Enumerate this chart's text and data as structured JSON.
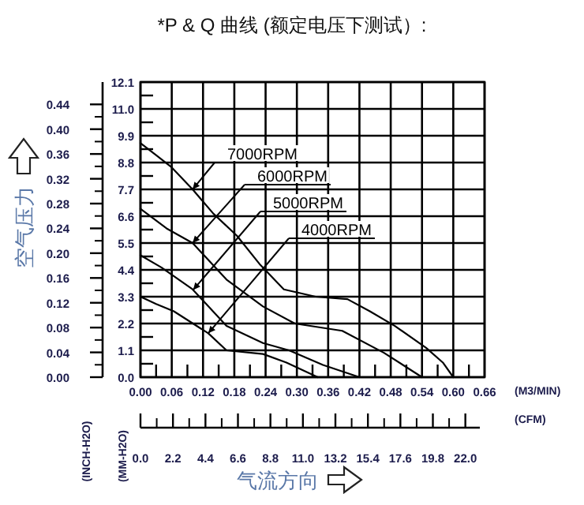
{
  "chart_data": {
    "type": "line",
    "title": "*P & Q 曲线 (额定电压下测试）:",
    "xlabel": "(M3/MIN)",
    "x2label": "(CFM)",
    "ylabel": "(MM-H2O)",
    "y2label": "(INCH-H2O)",
    "annotations": [
      "空气压力",
      "气流方向"
    ],
    "xlim": [
      0,
      0.66
    ],
    "ylim": [
      0,
      12.1
    ],
    "x2lim": [
      0,
      23.3
    ],
    "y2lim": [
      0,
      0.476
    ],
    "xticks": [
      {
        "value": 0,
        "label": "0.00"
      },
      {
        "value": 0.06,
        "label": "0.06"
      },
      {
        "value": 0.12,
        "label": "0.12"
      },
      {
        "value": 0.18,
        "label": "0.18"
      },
      {
        "value": 0.24,
        "label": "0.24"
      },
      {
        "value": 0.3,
        "label": "0.30"
      },
      {
        "value": 0.36,
        "label": "0.36"
      },
      {
        "value": 0.42,
        "label": "0.42"
      },
      {
        "value": 0.48,
        "label": "0.48"
      },
      {
        "value": 0.54,
        "label": "0.54"
      },
      {
        "value": 0.6,
        "label": "0.60"
      },
      {
        "value": 0.66,
        "label": "0.66"
      }
    ],
    "yticks": [
      {
        "value": 0,
        "label": "0.0"
      },
      1.1,
      2.2,
      3.3,
      4.4,
      5.5,
      6.6,
      7.7,
      8.8,
      9.9,
      {
        "value": 11,
        "label": "11.0"
      },
      12.1
    ],
    "x2ticks": [
      {
        "value": 0,
        "label": "0.0"
      },
      2.2,
      4.4,
      6.6,
      8.8,
      {
        "value": 11,
        "label": "11.0"
      },
      13.2,
      15.4,
      17.6,
      19.8,
      {
        "value": 22,
        "label": "22.0"
      }
    ],
    "y2ticks": [
      {
        "value": 0,
        "label": "0.00"
      },
      {
        "value": 0.04,
        "label": "0.04"
      },
      {
        "value": 0.08,
        "label": "0.08"
      },
      {
        "value": 0.12,
        "label": "0.12"
      },
      {
        "value": 0.16,
        "label": "0.16"
      },
      {
        "value": 0.2,
        "label": "0.20"
      },
      {
        "value": 0.24,
        "label": "0.24"
      },
      {
        "value": 0.28,
        "label": "0.28"
      },
      {
        "value": 0.32,
        "label": "0.32"
      },
      {
        "value": 0.36,
        "label": "0.36"
      },
      {
        "value": 0.4,
        "label": "0.40"
      },
      {
        "value": 0.44,
        "label": "0.44"
      }
    ],
    "grid": true,
    "marker": "none",
    "line_style": "solid",
    "series": [
      {
        "name": "7000RPM",
        "color": "#000000",
        "x": [
          0,
          0.03,
          0.06,
          0.1,
          0.14,
          0.185,
          0.23,
          0.275,
          0.336,
          0.397,
          0.44,
          0.488,
          0.548,
          0.58,
          0.6
        ],
        "values": [
          9.6,
          9.1,
          8.6,
          7.7,
          6.7,
          5.8,
          4.6,
          3.6,
          3.3,
          3.2,
          2.7,
          2.1,
          1.2,
          0.6,
          0
        ]
      },
      {
        "name": "6000RPM",
        "color": "#000000",
        "x": [
          0,
          0.05,
          0.1,
          0.165,
          0.235,
          0.296,
          0.387,
          0.467,
          0.54
        ],
        "values": [
          6.9,
          6.1,
          5.5,
          4.0,
          2.9,
          2.2,
          1.9,
          1.0,
          0
        ]
      },
      {
        "name": "5000RPM",
        "color": "#000000",
        "x": [
          0,
          0.04,
          0.1,
          0.165,
          0.235,
          0.285,
          0.35,
          0.42
        ],
        "values": [
          5.0,
          4.5,
          3.6,
          2.1,
          1.4,
          1.1,
          0.5,
          0
        ]
      },
      {
        "name": "4000RPM",
        "color": "#000000",
        "x": [
          0,
          0.03,
          0.064,
          0.13,
          0.165,
          0.235,
          0.28,
          0.34
        ],
        "values": [
          3.3,
          3.0,
          2.7,
          1.8,
          1.1,
          0.95,
          0.6,
          0
        ]
      }
    ]
  }
}
